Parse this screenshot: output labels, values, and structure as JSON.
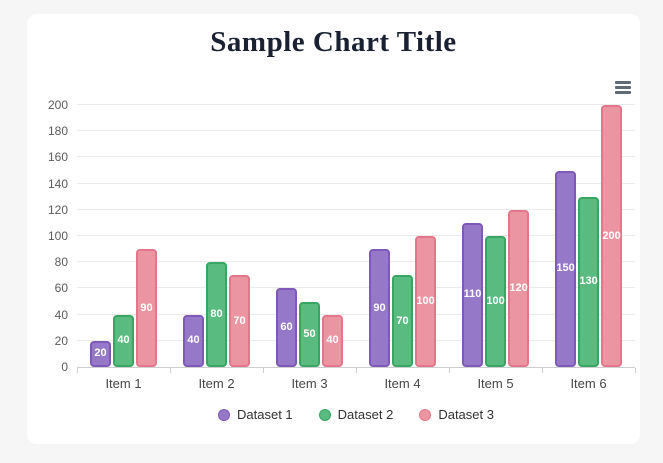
{
  "page": {
    "background_color": "#f6f6f7",
    "card_background_color": "#ffffff"
  },
  "header": {
    "title": "Sample Chart Title",
    "title_color": "#1a2231"
  },
  "toolbar": {
    "menu_icon": "hamburger-menu-icon",
    "menu_icon_color": "#5e6a75"
  },
  "chart_data": {
    "type": "bar",
    "title": "Sample Chart Title",
    "categories": [
      "Item 1",
      "Item 2",
      "Item 3",
      "Item 4",
      "Item 5",
      "Item 6"
    ],
    "series": [
      {
        "name": "Dataset 1",
        "color": "#9678c9",
        "border_color": "#7e59b8",
        "values": [
          20,
          40,
          60,
          90,
          110,
          150
        ]
      },
      {
        "name": "Dataset 2",
        "color": "#5abb81",
        "border_color": "#38a563",
        "values": [
          40,
          80,
          50,
          70,
          100,
          130
        ]
      },
      {
        "name": "Dataset 3",
        "color": "#ec95a2",
        "border_color": "#e4768b",
        "values": [
          90,
          70,
          40,
          100,
          120,
          200
        ]
      }
    ],
    "xlabel": "",
    "ylabel": "",
    "ylim": [
      0,
      200
    ],
    "y_ticks": [
      0,
      20,
      40,
      60,
      80,
      100,
      120,
      140,
      160,
      180,
      200
    ],
    "grid": true,
    "gridline_color": "#ebebeb",
    "axis_line_color": "#cfcfcf",
    "tick_label_color": "#5b5b5b",
    "legend_position": "bottom",
    "data_labels": true,
    "data_label_color": "#ffffff"
  }
}
